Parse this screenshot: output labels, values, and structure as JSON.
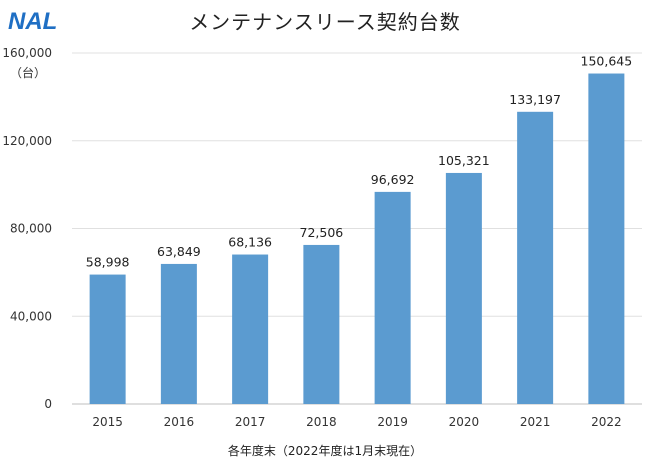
{
  "brand": {
    "logo_text": "NAL",
    "logo_color": "#1f6fc4"
  },
  "chart_data": {
    "type": "bar",
    "title": "メンテナンスリース契約台数",
    "unit_label": "（台）",
    "xlabel": "各年度末（2022年度は1月末現在）",
    "ylabel": "",
    "categories": [
      "2015",
      "2016",
      "2017",
      "2018",
      "2019",
      "2020",
      "2021",
      "2022"
    ],
    "values": [
      58998,
      63849,
      68136,
      72506,
      96692,
      105321,
      133197,
      150645
    ],
    "data_labels": [
      "58,998",
      "63,849",
      "68,136",
      "72,506",
      "96,692",
      "105,321",
      "133,197",
      "150,645"
    ],
    "y_ticks": [
      0,
      40000,
      80000,
      120000,
      160000
    ],
    "y_tick_labels": [
      "0",
      "40,000",
      "80,000",
      "120,000",
      "160,000"
    ],
    "ylim": [
      0,
      160000
    ],
    "grid": true,
    "bar_color": "#5b9bd0",
    "gridline_color": "#e0e0e0"
  }
}
